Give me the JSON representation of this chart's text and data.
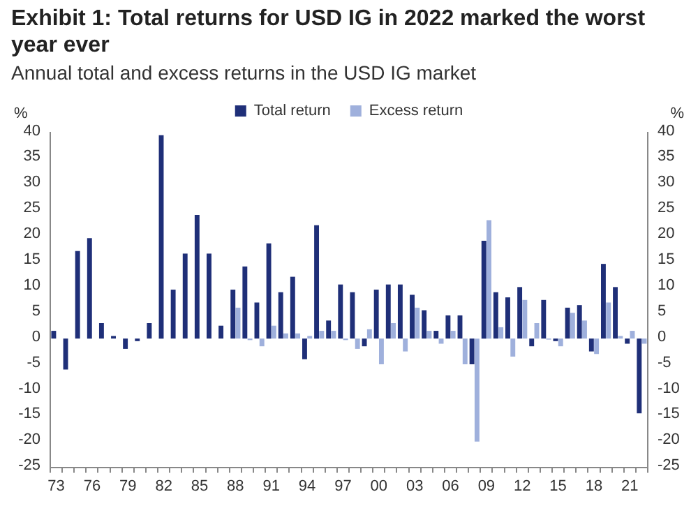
{
  "chart_data": {
    "type": "bar",
    "title": "Exhibit 1: Total returns for USD IG in 2022 marked the worst year ever",
    "subtitle": "Annual total and excess returns in the USD IG market",
    "ylabel": "%",
    "y2label": "%",
    "categories": [
      "73",
      null,
      null,
      "76",
      null,
      null,
      "79",
      null,
      null,
      "82",
      null,
      null,
      "85",
      null,
      null,
      "88",
      null,
      null,
      "91",
      null,
      null,
      "94",
      null,
      null,
      "97",
      null,
      null,
      "00",
      null,
      null,
      "03",
      null,
      null,
      "06",
      null,
      null,
      "09",
      null,
      null,
      "12",
      null,
      null,
      "15",
      null,
      null,
      "18",
      null,
      null,
      "21",
      null
    ],
    "series": [
      {
        "name": "Total return",
        "color": "#1f2f78",
        "values": [
          1.5,
          -6,
          17,
          19.5,
          3,
          0.5,
          -2,
          -0.5,
          3,
          39.5,
          9.5,
          16.5,
          24,
          16.5,
          2.5,
          9.5,
          14,
          7,
          18.5,
          9,
          12,
          -4,
          22,
          3.5,
          10.5,
          9,
          -1.5,
          9.5,
          10.5,
          10.5,
          8.5,
          5.5,
          1.5,
          4.5,
          4.5,
          -5,
          19,
          9,
          8,
          10,
          -1.5,
          7.5,
          -0.5,
          6,
          6.5,
          -2.5,
          14.5,
          10,
          -1,
          -14.5
        ]
      },
      {
        "name": "Excess return",
        "color": "#9fb0dc",
        "values": [
          null,
          null,
          null,
          null,
          null,
          null,
          null,
          null,
          null,
          null,
          null,
          null,
          null,
          null,
          null,
          6,
          -0.3,
          -1.5,
          2.5,
          1,
          1,
          0.5,
          1.5,
          1.5,
          -0.3,
          -2,
          1.8,
          -5,
          3,
          -2.5,
          6,
          1.5,
          -1,
          1.5,
          -5,
          -20,
          23,
          2.2,
          -3.5,
          7.5,
          3,
          -0.2,
          -1.5,
          5,
          3.5,
          -3,
          7,
          0.5,
          1.5,
          -1
        ]
      }
    ],
    "ylim": [
      -25,
      40
    ],
    "yticks": [
      -25,
      -20,
      -15,
      -10,
      -5,
      0,
      5,
      10,
      15,
      20,
      25,
      30,
      35,
      40
    ],
    "y2lim": [
      -25,
      40
    ],
    "y2ticks": [
      -25,
      -20,
      -15,
      -10,
      -5,
      0,
      5,
      10,
      15,
      20,
      25,
      30,
      35,
      40
    ],
    "grid": false,
    "legend": "top"
  }
}
